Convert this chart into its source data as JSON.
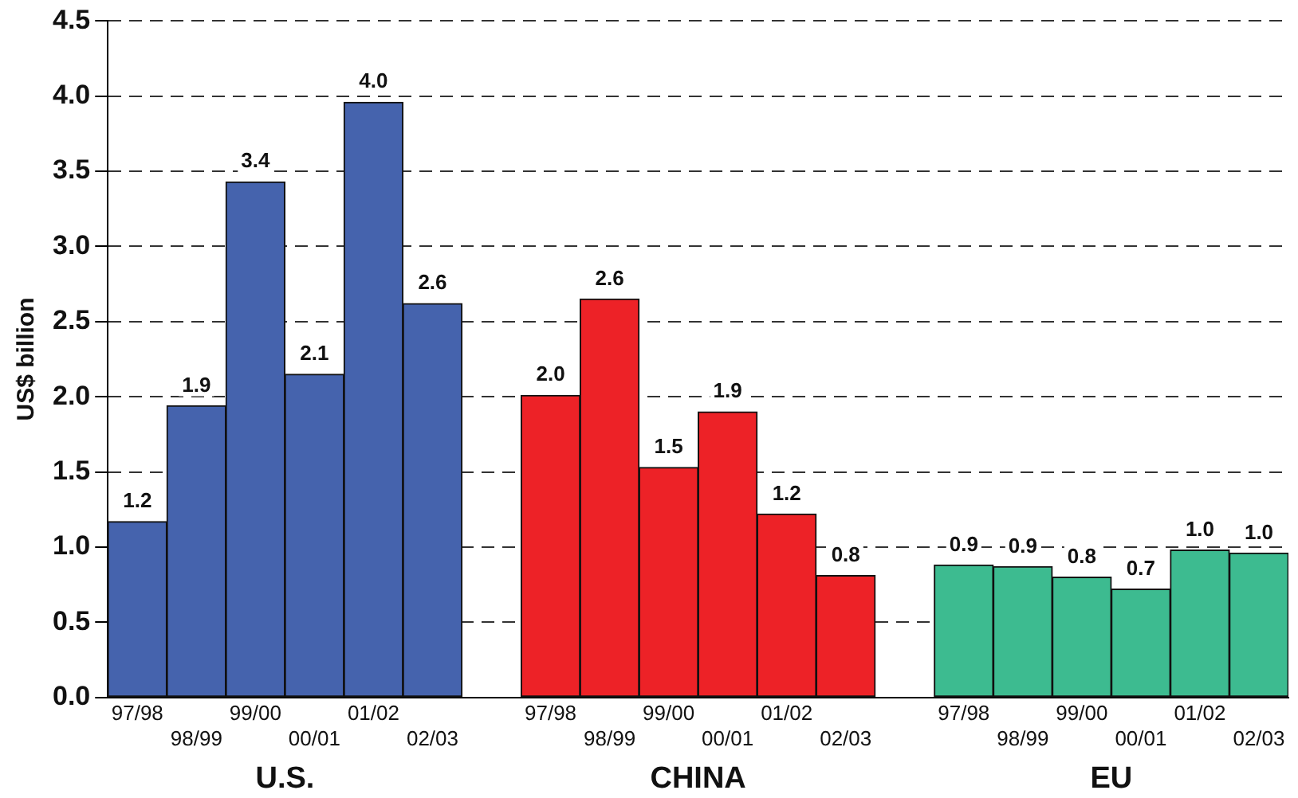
{
  "chart_data": {
    "type": "bar",
    "ylabel": "US$ billion",
    "categories": [
      "97/98",
      "98/99",
      "99/00",
      "00/01",
      "01/02",
      "02/03",
      null,
      "97/98",
      "98/99",
      "99/00",
      "00/01",
      "01/02",
      "02/03",
      null,
      "97/98",
      "98/99",
      "99/00",
      "00/01",
      "01/02",
      "02/03"
    ],
    "series": [
      {
        "name": "U.S.",
        "color": "#4563ad",
        "values": [
          1.17,
          1.94,
          3.43,
          2.15,
          3.96,
          2.62,
          null,
          null,
          null,
          null,
          null,
          null,
          null,
          null,
          null,
          null,
          null,
          null,
          null,
          null
        ],
        "value_labels": [
          "1.2",
          "1.9",
          "3.4",
          "2.1",
          "4.0",
          "2.6",
          null,
          null,
          null,
          null,
          null,
          null,
          null,
          null,
          null,
          null,
          null,
          null,
          null,
          null
        ]
      },
      {
        "name": "CHINA",
        "color": "#ed2227",
        "values": [
          null,
          null,
          null,
          null,
          null,
          null,
          null,
          2.01,
          2.65,
          1.53,
          1.9,
          1.22,
          0.81,
          null,
          null,
          null,
          null,
          null,
          null,
          null
        ],
        "value_labels": [
          null,
          null,
          null,
          null,
          null,
          null,
          null,
          "2.0",
          "2.6",
          "1.5",
          "1.9",
          "1.2",
          "0.8",
          null,
          null,
          null,
          null,
          null,
          null,
          null
        ]
      },
      {
        "name": "EU",
        "color": "#3dbb90",
        "values": [
          null,
          null,
          null,
          null,
          null,
          null,
          null,
          null,
          null,
          null,
          null,
          null,
          null,
          null,
          0.88,
          0.87,
          0.8,
          0.72,
          0.98,
          0.96
        ],
        "value_labels": [
          null,
          null,
          null,
          null,
          null,
          null,
          null,
          null,
          null,
          null,
          null,
          null,
          null,
          null,
          "0.9",
          "0.9",
          "0.8",
          "0.7",
          "1.0",
          "1.0"
        ]
      }
    ],
    "ylim": [
      0,
      4.5
    ],
    "yticks": [
      {
        "value": 0,
        "label": "0.0"
      },
      0.5,
      {
        "value": 1,
        "label": "1.0"
      },
      1.5,
      {
        "value": 2,
        "label": "2.0"
      },
      2.5,
      {
        "value": 3,
        "label": "3.0"
      },
      3.5,
      {
        "value": 4,
        "label": "4.0"
      },
      4.5
    ],
    "grid": "y",
    "legend": false
  }
}
